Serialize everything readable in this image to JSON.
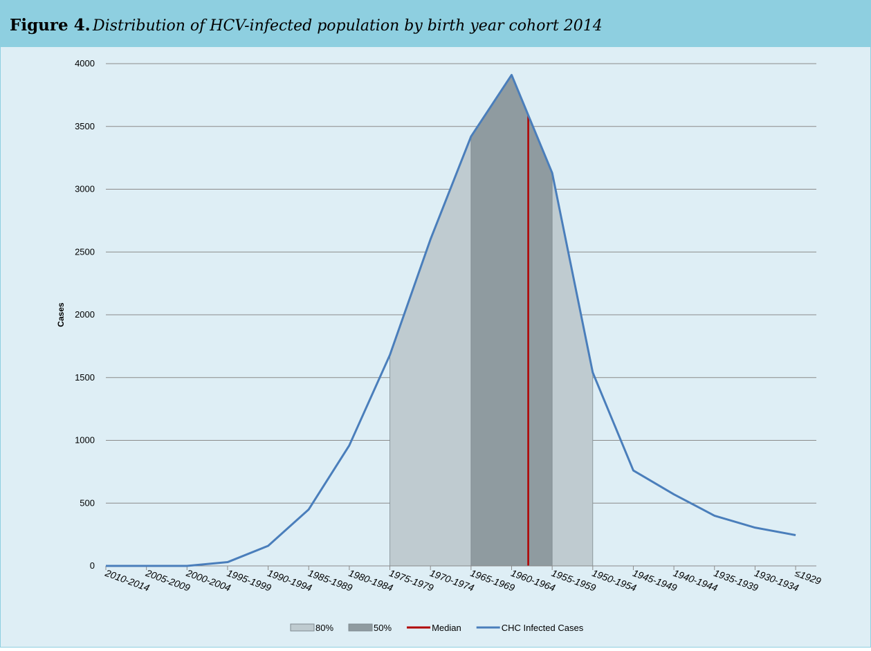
{
  "chart_data": {
    "type": "line",
    "figure_label": "Figure 4.",
    "title": "Distribution of HCV-infected population by birth year cohort 2014",
    "ylabel": "Cases",
    "categories": [
      "2010-2014",
      "2005-2009",
      "2000-2004",
      "1995-1999",
      "1990-1994",
      "1985-1989",
      "1980-1984",
      "1975-1979",
      "1970-1974",
      "1965-1969",
      "1960-1964",
      "1955-1959",
      "1950-1954",
      "1945-1949",
      "1940-1944",
      "1935-1939",
      "1930-1934",
      "≤1929"
    ],
    "series": [
      {
        "name": "CHC Infected Cases",
        "color": "#4a7ebb",
        "values": [
          0,
          0,
          0,
          30,
          160,
          450,
          960,
          1680,
          2600,
          3420,
          3910,
          3130,
          1540,
          760,
          570,
          400,
          305,
          245
        ]
      }
    ],
    "bands": [
      {
        "name": "80%",
        "color": "#bfcbd0",
        "from": "1975-1979",
        "to": "1950-1954"
      },
      {
        "name": "50%",
        "color": "#8f9ba0",
        "from": "1965-1969",
        "to": "1955-1959"
      }
    ],
    "median": {
      "name": "Median",
      "color": "#b00000",
      "x": 10.41
    },
    "ylim": [
      0,
      4000
    ],
    "yticks": [
      0,
      500,
      1000,
      1500,
      2000,
      2500,
      3000,
      3500,
      4000
    ],
    "grid": true
  }
}
